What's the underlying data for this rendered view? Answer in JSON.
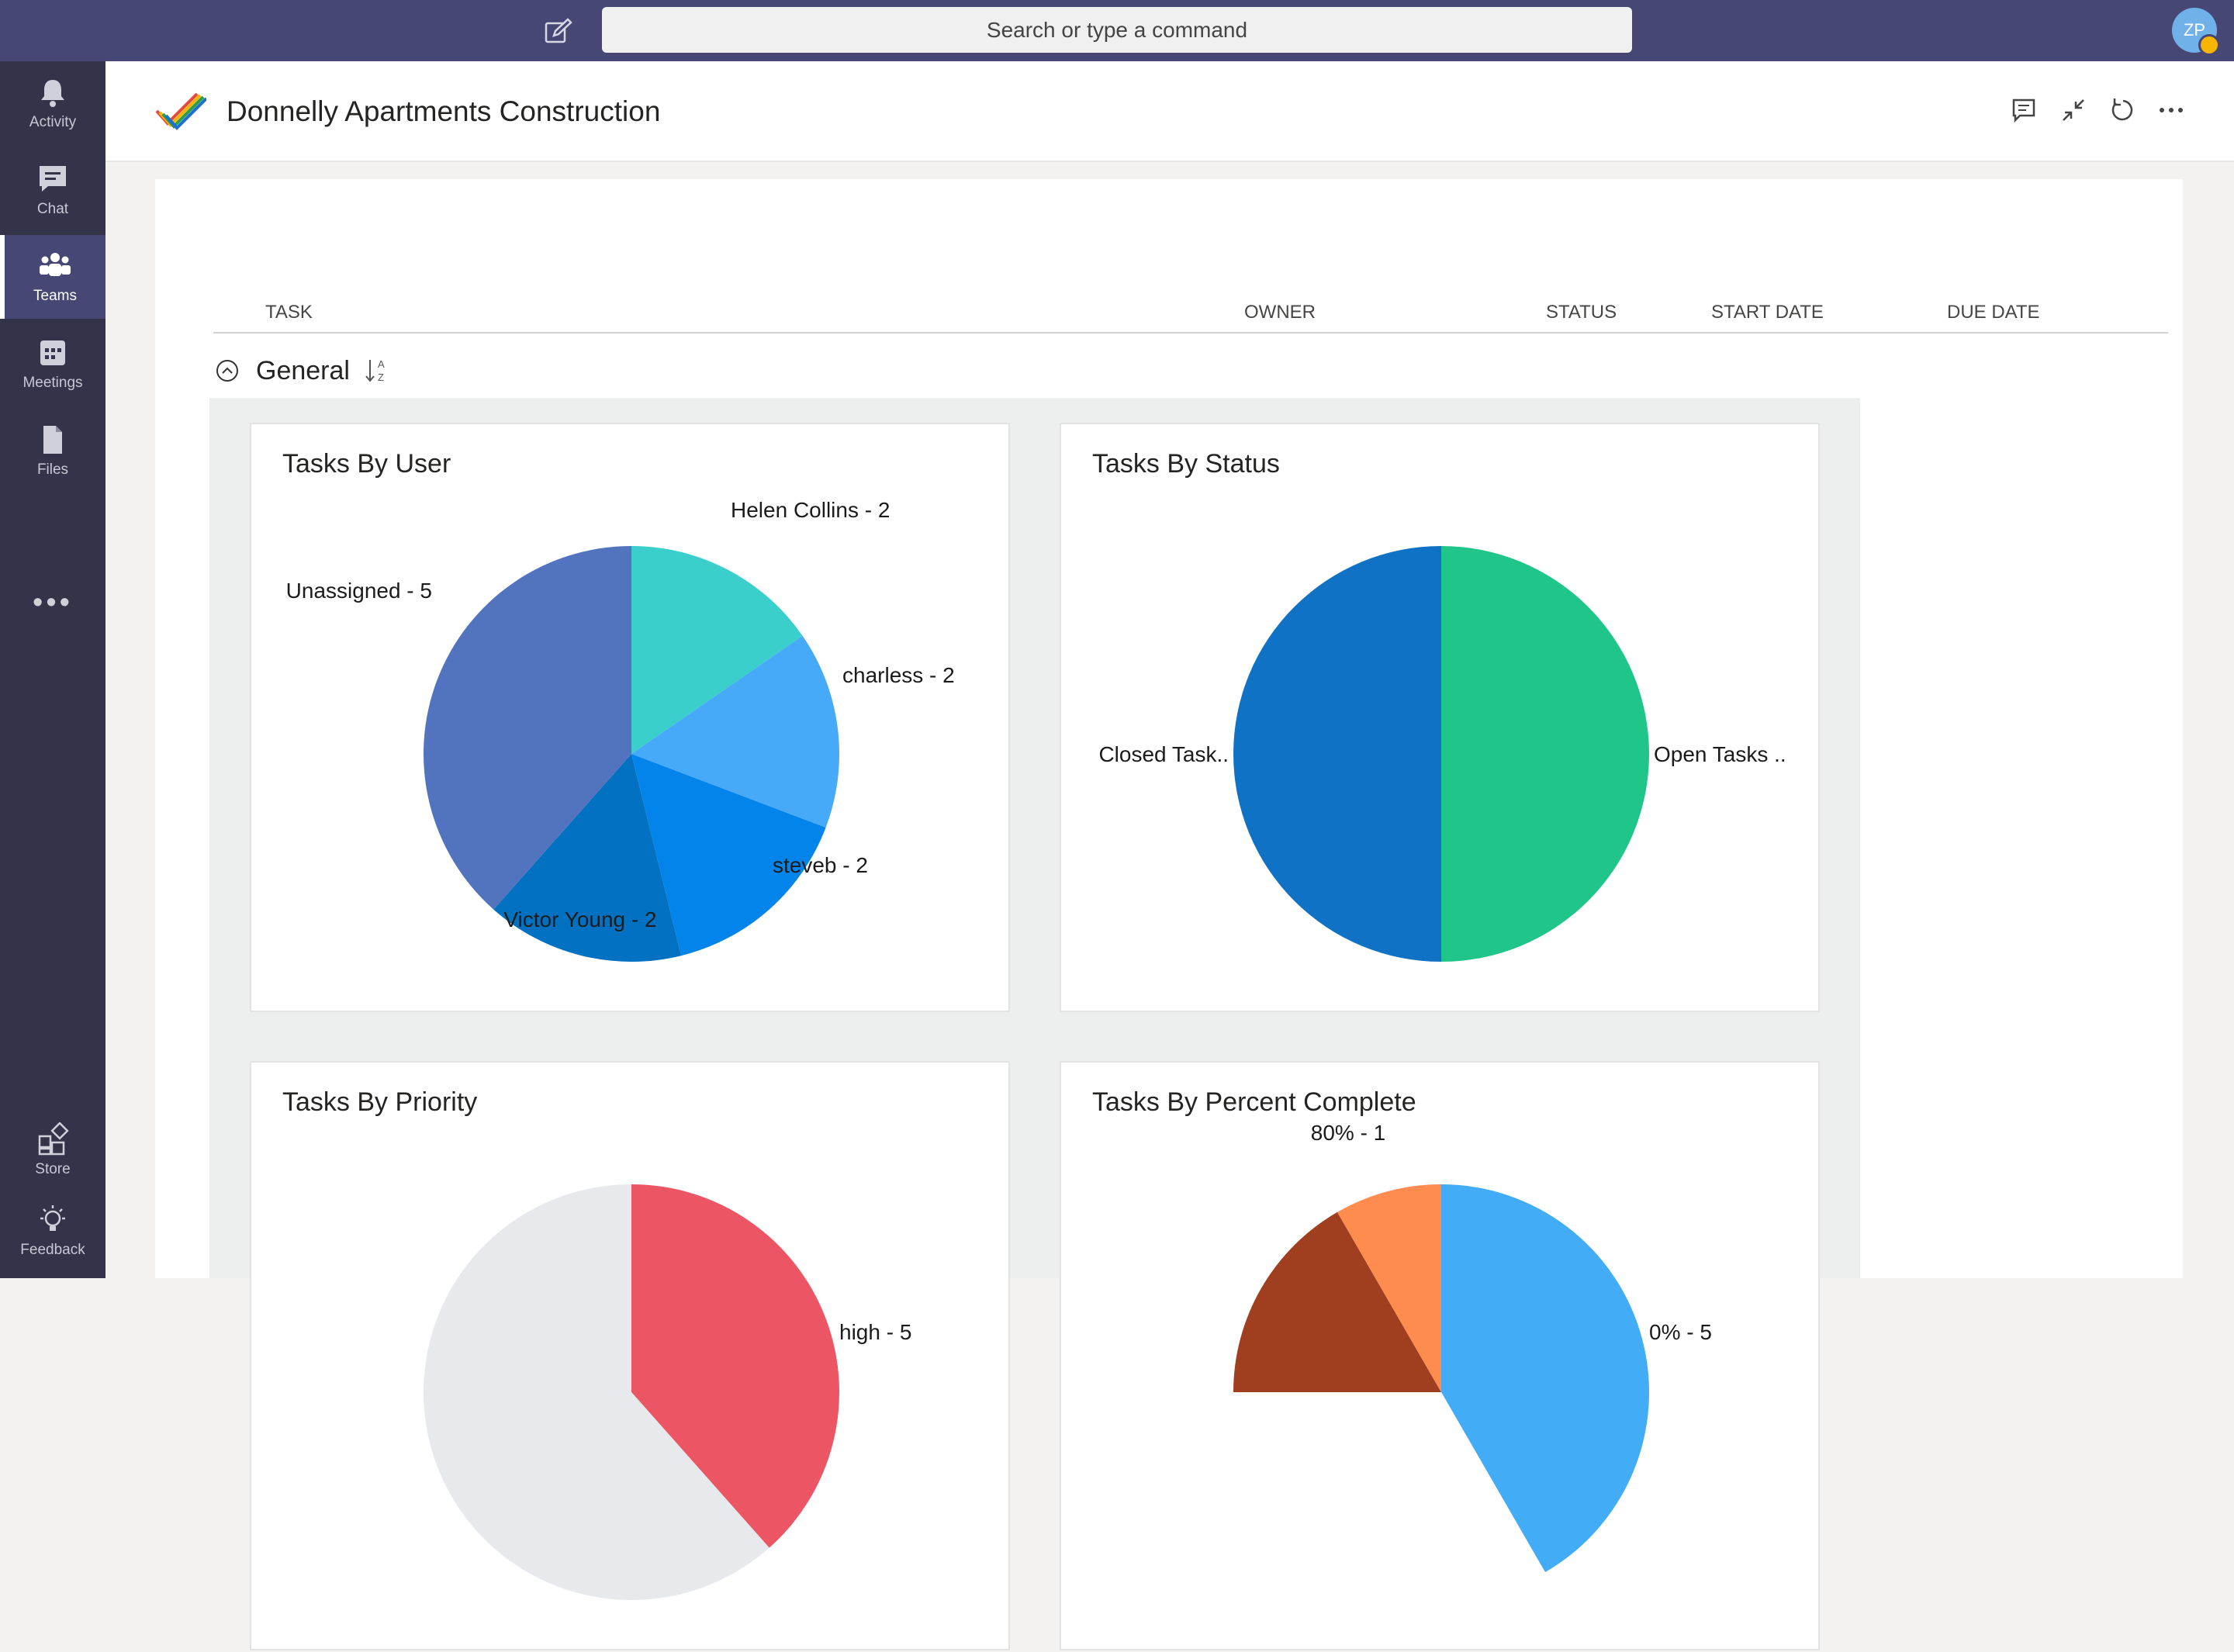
{
  "topbar": {
    "search_placeholder": "Search or type a command",
    "avatar_initials": "ZP",
    "compose_icon": "compose-icon"
  },
  "rail": {
    "items": [
      {
        "label": "Activity",
        "icon": "bell-icon"
      },
      {
        "label": "Chat",
        "icon": "chat-icon"
      },
      {
        "label": "Teams",
        "icon": "teams-icon",
        "active": true
      },
      {
        "label": "Meetings",
        "icon": "calendar-icon"
      },
      {
        "label": "Files",
        "icon": "file-icon"
      }
    ],
    "more": "•••",
    "bottom": [
      {
        "label": "Store",
        "icon": "store-icon"
      },
      {
        "label": "Feedback",
        "icon": "lightbulb-icon"
      }
    ]
  },
  "header": {
    "title": "Donnelly Apartments Construction",
    "icons": [
      "conversation-icon",
      "collapse-icon",
      "refresh-icon",
      "more-icon"
    ]
  },
  "table": {
    "columns": [
      "TASK",
      "OWNER",
      "STATUS",
      "START DATE",
      "DUE DATE"
    ]
  },
  "group": {
    "title": "General"
  },
  "colors": {
    "topbar": "#464775",
    "rail": "#33344a"
  },
  "chart_data": [
    {
      "type": "pie",
      "title": "Tasks By User",
      "slices": [
        {
          "label": "Helen Collins - 2",
          "value": 2,
          "color": "#3bcfcb"
        },
        {
          "label": "charless - 2",
          "value": 2,
          "color": "#47aaf9"
        },
        {
          "label": "steveb - 2",
          "value": 2,
          "color": "#0284ea"
        },
        {
          "label": "Victor Young - 2",
          "value": 2,
          "color": "#0271c2"
        },
        {
          "label": "Unassigned - 5",
          "value": 5,
          "color": "#5273bd"
        }
      ]
    },
    {
      "type": "pie",
      "title": "Tasks By Status",
      "slices": [
        {
          "label": "Open Tasks ..",
          "value": 1,
          "color": "#20c589"
        },
        {
          "label": "Closed Task..",
          "value": 1,
          "color": "#1072c4"
        }
      ]
    },
    {
      "type": "pie",
      "title": "Tasks By Priority",
      "slices": [
        {
          "label": "high - 5",
          "value": 5,
          "color": "#ec5564"
        },
        {
          "label": "",
          "value": 8,
          "color": "#e7e9ed"
        }
      ]
    },
    {
      "type": "pie",
      "title": "Tasks By Percent Complete",
      "slices": [
        {
          "label": "0% - 5",
          "value": 5,
          "color": "#42acf6"
        },
        {
          "label": "",
          "value": 4,
          "color": "#ffffff"
        },
        {
          "label": "",
          "value": 2,
          "color": "#a03f1f"
        },
        {
          "label": "80% - 1",
          "value": 1,
          "color": "#ff8c4f"
        }
      ]
    }
  ]
}
